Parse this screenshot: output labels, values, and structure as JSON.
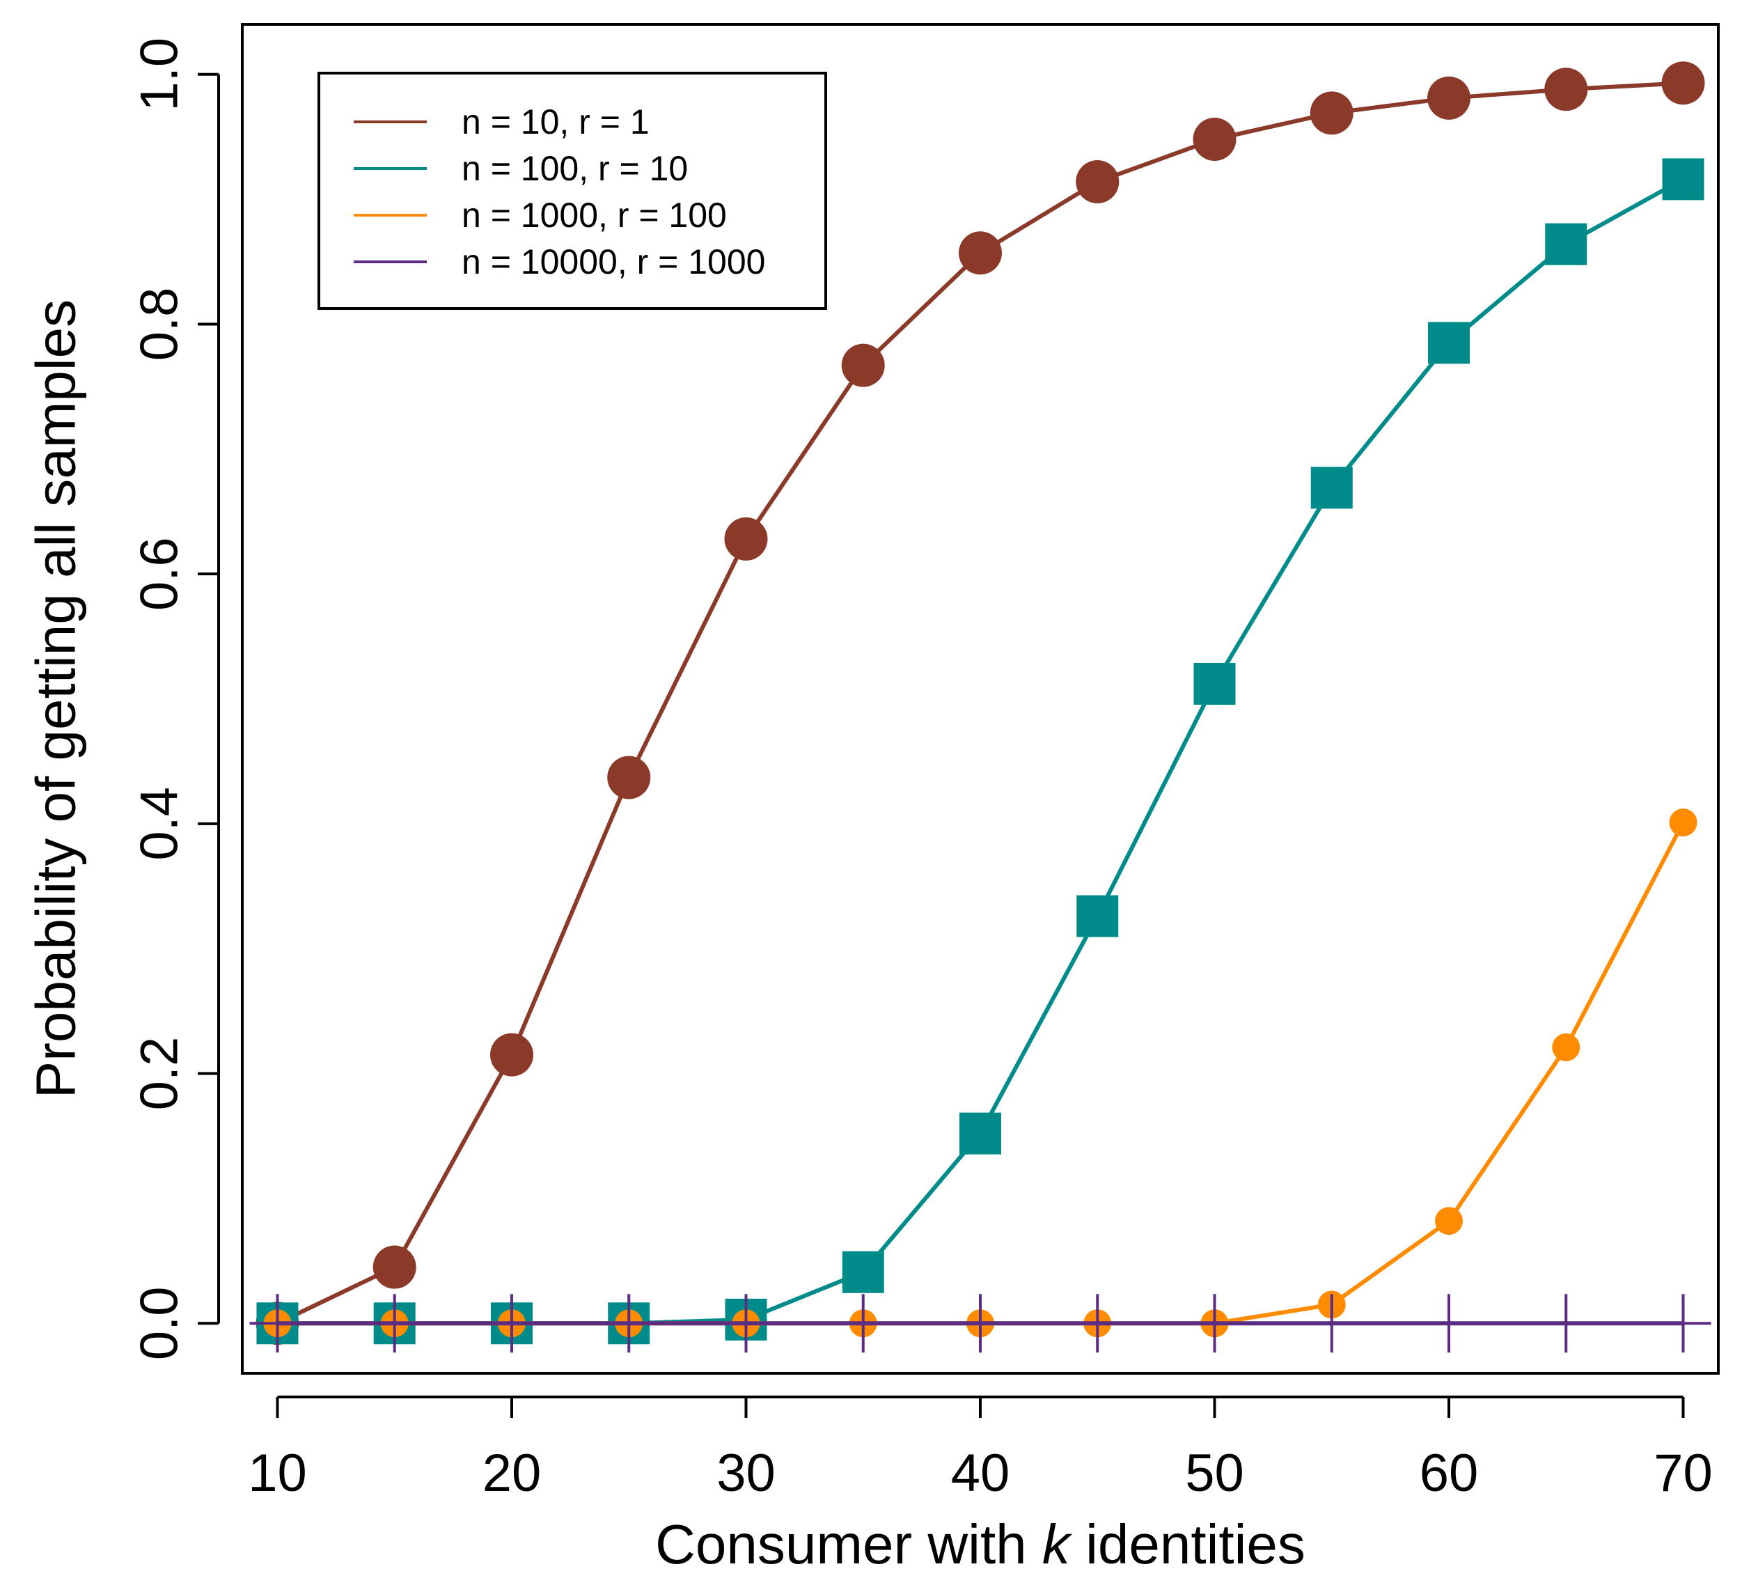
{
  "chart_data": {
    "type": "line",
    "title": "",
    "xlabel_prefix": "Consumer with ",
    "xlabel_var": "k",
    "xlabel_suffix": " identities",
    "ylabel": "Probability of getting all samples",
    "xlim": [
      8.5,
      71.5
    ],
    "ylim": [
      -0.04,
      1.04
    ],
    "xticks": [
      10,
      20,
      30,
      40,
      50,
      60,
      70
    ],
    "xtick_labels": [
      "10",
      "20",
      "30",
      "40",
      "50",
      "60",
      "70"
    ],
    "yticks": [
      0.0,
      0.2,
      0.4,
      0.6,
      0.8,
      1.0
    ],
    "ytick_labels": [
      "0.0",
      "0.2",
      "0.4",
      "0.6",
      "0.8",
      "1.0"
    ],
    "grid": false,
    "legend_position": "top-left",
    "x": [
      10,
      15,
      20,
      25,
      30,
      35,
      40,
      45,
      50,
      55,
      60,
      65,
      70
    ],
    "series": [
      {
        "name": "n = 10, r = 1",
        "color": "#8B3A2A",
        "marker": "circle",
        "values": [
          0.0,
          0.045,
          0.215,
          0.437,
          0.628,
          0.767,
          0.857,
          0.914,
          0.948,
          0.969,
          0.981,
          0.988,
          0.993
        ]
      },
      {
        "name": "n = 100, r = 10",
        "color": "#008B8B",
        "marker": "square",
        "values": [
          0.0,
          0.0,
          0.0,
          0.0,
          0.003,
          0.041,
          0.152,
          0.326,
          0.512,
          0.669,
          0.785,
          0.864,
          0.916
        ]
      },
      {
        "name": "n = 1000, r = 100",
        "color": "#FF8C00",
        "marker": "circle-small",
        "values": [
          0.0,
          0.0,
          0.0,
          0.0,
          0.0,
          0.0,
          0.0,
          0.0,
          0.0,
          0.015,
          0.082,
          0.221,
          0.401
        ]
      },
      {
        "name": "n = 10000, r = 1000",
        "color": "#5B2C83",
        "marker": "plus",
        "values": [
          0.0,
          0.0,
          0.0,
          0.0,
          0.0,
          0.0,
          0.0,
          0.0,
          0.0,
          0.0,
          0.0,
          0.0,
          0.0
        ]
      }
    ]
  }
}
